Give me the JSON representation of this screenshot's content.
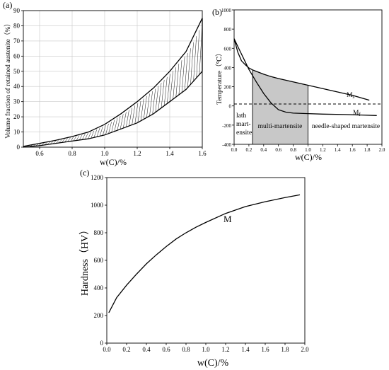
{
  "chart_data": [
    {
      "panel_label": "(a)",
      "type": "area",
      "xlabel": "w(C)/%",
      "ylabel": "Volume fraction of retained austenite（%）",
      "xlim": [
        0.5,
        1.6
      ],
      "ylim": [
        0,
        90
      ],
      "xticks": [
        "0.6",
        "0.8",
        "1.0",
        "1.2",
        "1.4",
        "1.6"
      ],
      "yticks": [
        "0",
        "10",
        "20",
        "30",
        "40",
        "50",
        "60",
        "70",
        "80",
        "90"
      ],
      "grid": true,
      "series": [
        {
          "x": [
            0.5,
            0.6,
            0.7,
            0.8,
            0.9,
            1.0,
            1.1,
            1.2,
            1.3,
            1.4,
            1.5,
            1.6
          ],
          "values": [
            0.5,
            2.5,
            4.5,
            7,
            10,
            15,
            22,
            30,
            39,
            50,
            63,
            85
          ]
        },
        {
          "x": [
            0.5,
            0.6,
            0.7,
            0.8,
            0.9,
            1.0,
            1.1,
            1.2,
            1.3,
            1.4,
            1.5,
            1.6
          ],
          "values": [
            0,
            1,
            2.5,
            4,
            5.5,
            8,
            12,
            16,
            22,
            30,
            38,
            50
          ]
        }
      ]
    },
    {
      "panel_label": "(b)",
      "type": "line",
      "xlabel": "w(C)/%",
      "ylabel": "Temperature（℃）",
      "xlim": [
        0,
        2.0
      ],
      "ylim": [
        -400,
        1000
      ],
      "xticks": [
        "0.0",
        "0.2",
        "0.4",
        "0.6",
        "0.8",
        "1.0",
        "1.2",
        "1.4",
        "1.6",
        "1.8",
        "2.0"
      ],
      "yticks": [
        "1000",
        "800",
        "600",
        "400",
        "200",
        "0",
        "-200",
        "-400"
      ],
      "reference_line": 20,
      "shaded_range": [
        0.25,
        1.0
      ],
      "series": [
        {
          "name": "Ms",
          "x": [
            0.0,
            0.05,
            0.1,
            0.15,
            0.2,
            0.25,
            0.3,
            0.4,
            0.5,
            0.6,
            0.8,
            1.0,
            1.2,
            1.4,
            1.6,
            1.83
          ],
          "values": [
            700,
            560,
            470,
            430,
            395,
            375,
            360,
            330,
            305,
            285,
            250,
            215,
            180,
            145,
            110,
            60
          ]
        },
        {
          "name": "Mf",
          "x": [
            0.0,
            0.05,
            0.1,
            0.15,
            0.2,
            0.3,
            0.4,
            0.5,
            0.6,
            0.7,
            0.8,
            1.0,
            1.2,
            1.5,
            1.93
          ],
          "values": [
            700,
            620,
            540,
            460,
            380,
            250,
            130,
            30,
            -40,
            -65,
            -75,
            -80,
            -85,
            -90,
            -100
          ]
        }
      ],
      "curve_labels": [
        {
          "main": "M",
          "sub": "s"
        },
        {
          "main": "M",
          "sub": "f"
        }
      ],
      "region_labels": [
        "lath",
        "mart-",
        "ensite",
        "multi-martensite",
        "needle-shaped martensite"
      ]
    },
    {
      "panel_label": "(c)",
      "type": "line",
      "xlabel": "w(C)/%",
      "ylabel": "Hardness（HV）",
      "xlim": [
        0,
        2.0
      ],
      "ylim": [
        0,
        1200
      ],
      "xticks": [
        "0.0",
        "0.2",
        "0.4",
        "0.6",
        "0.8",
        "1.0",
        "1.2",
        "1.4",
        "1.6",
        "1.8",
        "2.0"
      ],
      "yticks": [
        "0",
        "200",
        "400",
        "600",
        "800",
        "1000",
        "1200"
      ],
      "series": [
        {
          "name": "M",
          "x": [
            0.02,
            0.1,
            0.2,
            0.3,
            0.4,
            0.5,
            0.6,
            0.7,
            0.8,
            0.9,
            1.0,
            1.2,
            1.4,
            1.6,
            1.8,
            1.95
          ],
          "values": [
            220,
            330,
            420,
            500,
            575,
            640,
            700,
            755,
            800,
            840,
            875,
            940,
            990,
            1025,
            1055,
            1075
          ]
        }
      ],
      "curve_label": "M"
    }
  ]
}
